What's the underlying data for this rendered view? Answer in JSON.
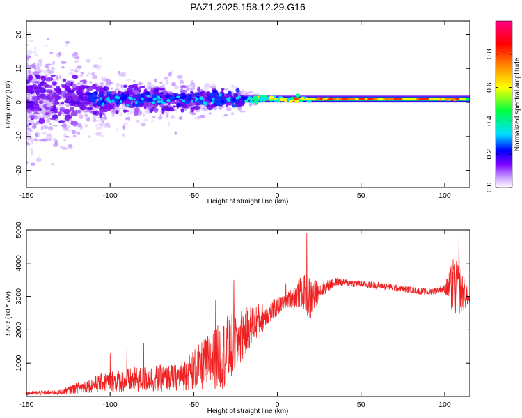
{
  "figure_title": "PAZ1.2025.158.12.29.G16",
  "chart_data": [
    {
      "type": "heatmap",
      "title": "PAZ1.2025.158.12.29.G16",
      "xlabel": "Height of straight line (km)",
      "ylabel": "Frequency (Hz)",
      "xlim": [
        -150,
        115
      ],
      "ylim": [
        -25,
        24
      ],
      "x_ticks": [
        -150,
        -100,
        -50,
        0,
        50,
        100
      ],
      "y_ticks": [
        -20,
        -10,
        0,
        10,
        20
      ],
      "grid": false,
      "colorbar": {
        "label": "Normalized spectral amplitude",
        "range": [
          0,
          1
        ],
        "ticks": [
          "0.0",
          "0.2",
          "0.4",
          "0.6",
          "0.8"
        ],
        "colors": [
          "#ffffff",
          "#c9a0ff",
          "#7a00ff",
          "#0000ff",
          "#00e0ff",
          "#00ff40",
          "#ffff00",
          "#ff8000",
          "#ff0000",
          "#ff0080"
        ]
      },
      "description_values": {
        "dominant_frequency_hz": 1,
        "scatter_extent_hz_at_minus150km": 24,
        "scatter_extent_hz_at_minus50km": 8,
        "coherent_tone_starts_km": -20
      }
    },
    {
      "type": "line",
      "xlabel": "Height of straight line (km)",
      "ylabel": "SNR (10 * v/v)",
      "xlim": [
        -150,
        115
      ],
      "ylim": [
        0,
        5000
      ],
      "x_ticks": [
        -150,
        -100,
        -50,
        0,
        50,
        100
      ],
      "y_ticks": [
        1000,
        2000,
        3000,
        4000,
        5000
      ],
      "grid": false,
      "series": [
        {
          "color": "#ee2222",
          "envelope": [
            {
              "x": -150,
              "mean": 80,
              "spread": 120
            },
            {
              "x": -130,
              "mean": 100,
              "spread": 150
            },
            {
              "x": -115,
              "mean": 250,
              "spread": 400
            },
            {
              "x": -100,
              "mean": 350,
              "spread": 650
            },
            {
              "x": -80,
              "mean": 400,
              "spread": 800
            },
            {
              "x": -60,
              "mean": 450,
              "spread": 800
            },
            {
              "x": -45,
              "mean": 700,
              "spread": 1500
            },
            {
              "x": -30,
              "mean": 1000,
              "spread": 2200
            },
            {
              "x": -15,
              "mean": 2000,
              "spread": 1200
            },
            {
              "x": -5,
              "mean": 2400,
              "spread": 700
            },
            {
              "x": 5,
              "mean": 2800,
              "spread": 400
            },
            {
              "x": 15,
              "mean": 3000,
              "spread": 1000
            },
            {
              "x": 20,
              "mean": 2700,
              "spread": 1400
            },
            {
              "x": 25,
              "mean": 3100,
              "spread": 500
            },
            {
              "x": 35,
              "mean": 3400,
              "spread": 250
            },
            {
              "x": 60,
              "mean": 3300,
              "spread": 200
            },
            {
              "x": 90,
              "mean": 3100,
              "spread": 200
            },
            {
              "x": 100,
              "mean": 3200,
              "spread": 250
            },
            {
              "x": 105,
              "mean": 3000,
              "spread": 1800
            },
            {
              "x": 110,
              "mean": 3000,
              "spread": 1500
            },
            {
              "x": 115,
              "mean": 2850,
              "spread": 150
            }
          ],
          "peaks": [
            {
              "x": 17.5,
              "y": 4900
            },
            {
              "x": 108.5,
              "y": 5000
            },
            {
              "x": -90,
              "y": 1550
            },
            {
              "x": -80,
              "y": 1600
            },
            {
              "x": -100,
              "y": 1300
            },
            {
              "x": -37,
              "y": 2900
            },
            {
              "x": -26,
              "y": 3500
            },
            {
              "x": 5,
              "y": 3400
            }
          ]
        }
      ]
    }
  ]
}
